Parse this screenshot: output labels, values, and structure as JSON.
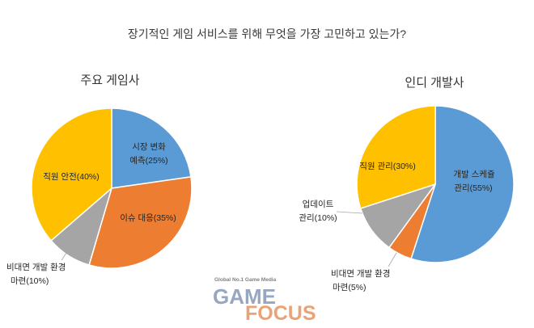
{
  "title": "장기적인 게임 서비스를 위해 무엇을 가장 고민하고 있는가?",
  "chart_data": [
    {
      "type": "pie",
      "title": "주요 게임사",
      "slices": [
        {
          "label_lines": [
            "시장 변화",
            "예측(25%)"
          ],
          "value": 25,
          "color": "#5B9BD5"
        },
        {
          "label_lines": [
            "이슈 대응(35%)"
          ],
          "value": 35,
          "color": "#ED7D31"
        },
        {
          "label_lines": [
            "비대면 개발 환경",
            "마련(10%)"
          ],
          "value": 10,
          "color": "#A5A5A5"
        },
        {
          "label_lines": [
            "직원 안전(40%)"
          ],
          "value": 40,
          "color": "#FFC000"
        }
      ]
    },
    {
      "type": "pie",
      "title": "인디 개발사",
      "slices": [
        {
          "label_lines": [
            "개발 스케쥴",
            "관리(55%)"
          ],
          "value": 55,
          "color": "#5B9BD5"
        },
        {
          "label_lines": [
            "비대면 개발 환경",
            "마련(5%)"
          ],
          "value": 5,
          "color": "#ED7D31"
        },
        {
          "label_lines": [
            "업데이트",
            "관리(10%)"
          ],
          "value": 10,
          "color": "#A5A5A5"
        },
        {
          "label_lines": [
            "직원 관리(30%)"
          ],
          "value": 30,
          "color": "#FFC000"
        }
      ]
    }
  ],
  "logo": {
    "tagline": "Global No.1 Game Media",
    "word1": "GAME",
    "word2": "FOCUS"
  }
}
